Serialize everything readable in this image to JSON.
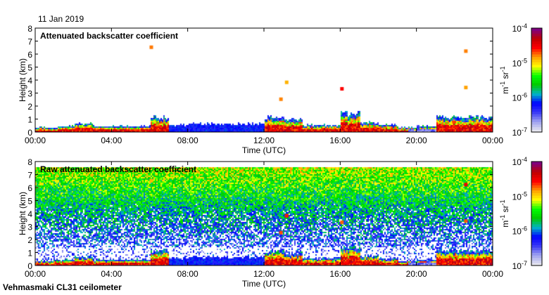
{
  "date": "11 Jan 2019",
  "footer": "Vehmasmaki CL31 ceilometer",
  "colors": {
    "colormap": [
      "#e6e6f0",
      "#9fa2f0",
      "#3a3af5",
      "#0000ff",
      "#00b4c8",
      "#00c800",
      "#00ff00",
      "#ffff00",
      "#ffa000",
      "#ff0000",
      "#c00000",
      "#800080"
    ]
  },
  "chart_data": [
    {
      "type": "heatmap",
      "title": "Attenuated backscatter coefficient",
      "xlabel": "Time (UTC)",
      "ylabel": "Height (km)",
      "xlim": [
        0,
        24
      ],
      "ylim": [
        0,
        8
      ],
      "xticks": [
        "00:00",
        "04:00",
        "08:00",
        "12:00",
        "16:00",
        "20:00",
        "00:00"
      ],
      "yticks": [
        "0",
        "1",
        "2",
        "3",
        "4",
        "5",
        "6",
        "7",
        "8"
      ],
      "colorbar": {
        "label": "m-1 sr-1",
        "scale": "log",
        "range": [
          1e-07,
          0.0001
        ],
        "ticks": [
          "10^-7",
          "10^-6",
          "10^-5",
          "10^-4"
        ]
      },
      "layer_top_km_hourly": [
        0.4,
        0.5,
        0.7,
        0.5,
        0.5,
        0.5,
        1.2,
        0.6,
        0.7,
        0.7,
        0.7,
        0.7,
        1.2,
        1.0,
        0.6,
        0.6,
        1.5,
        0.8,
        0.6,
        0.4,
        0.5,
        1.2,
        1.2,
        1.2
      ],
      "cloud_features": [
        {
          "time_h": 6.0,
          "height_km": 6.5
        },
        {
          "time_h": 12.8,
          "height_km": 2.5
        },
        {
          "time_h": 13.1,
          "height_km": 3.8
        },
        {
          "time_h": 16.0,
          "height_km": 3.3
        },
        {
          "time_h": 22.5,
          "height_km": 3.4
        },
        {
          "time_h": 22.5,
          "height_km": 6.2
        }
      ]
    },
    {
      "type": "heatmap",
      "title": "Raw attenuated backscatter coefficient",
      "xlabel": "Time (UTC)",
      "ylabel": "Height (km)",
      "xlim": [
        0,
        24
      ],
      "ylim": [
        0,
        8
      ],
      "xticks": [
        "00:00",
        "04:00",
        "08:00",
        "12:00",
        "16:00",
        "20:00",
        "00:00"
      ],
      "yticks": [
        "0",
        "1",
        "2",
        "3",
        "4",
        "5",
        "6",
        "7",
        "8"
      ],
      "colorbar": {
        "label": "m-1 sr-1",
        "scale": "log",
        "range": [
          1e-07,
          0.0001
        ],
        "ticks": [
          "10^-7",
          "10^-6",
          "10^-5",
          "10^-4"
        ]
      }
    }
  ]
}
